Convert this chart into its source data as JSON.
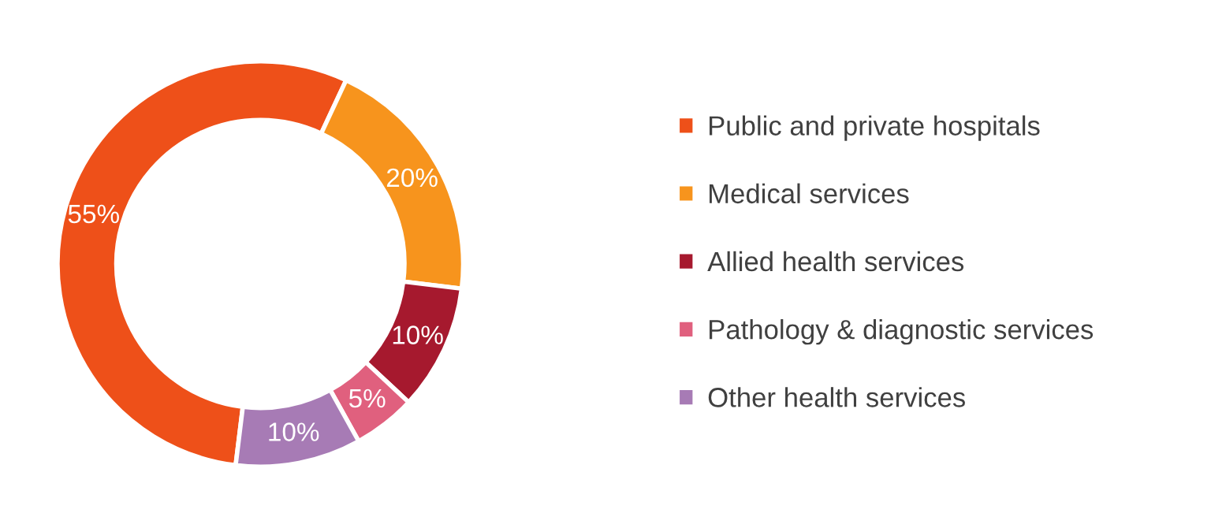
{
  "chart_data": {
    "type": "donut",
    "categories": [
      "Public and private hospitals",
      "Medical services",
      "Allied health services",
      "Pathology & diagnostic services",
      "Other health services"
    ],
    "values": [
      55,
      20,
      10,
      5,
      10
    ],
    "colors": [
      "#ee5019",
      "#f7941d",
      "#a6192e",
      "#e0607e",
      "#a77bb5"
    ],
    "value_labels": [
      "55%",
      "20%",
      "10%",
      "5%",
      "10%"
    ],
    "legend": "right"
  }
}
